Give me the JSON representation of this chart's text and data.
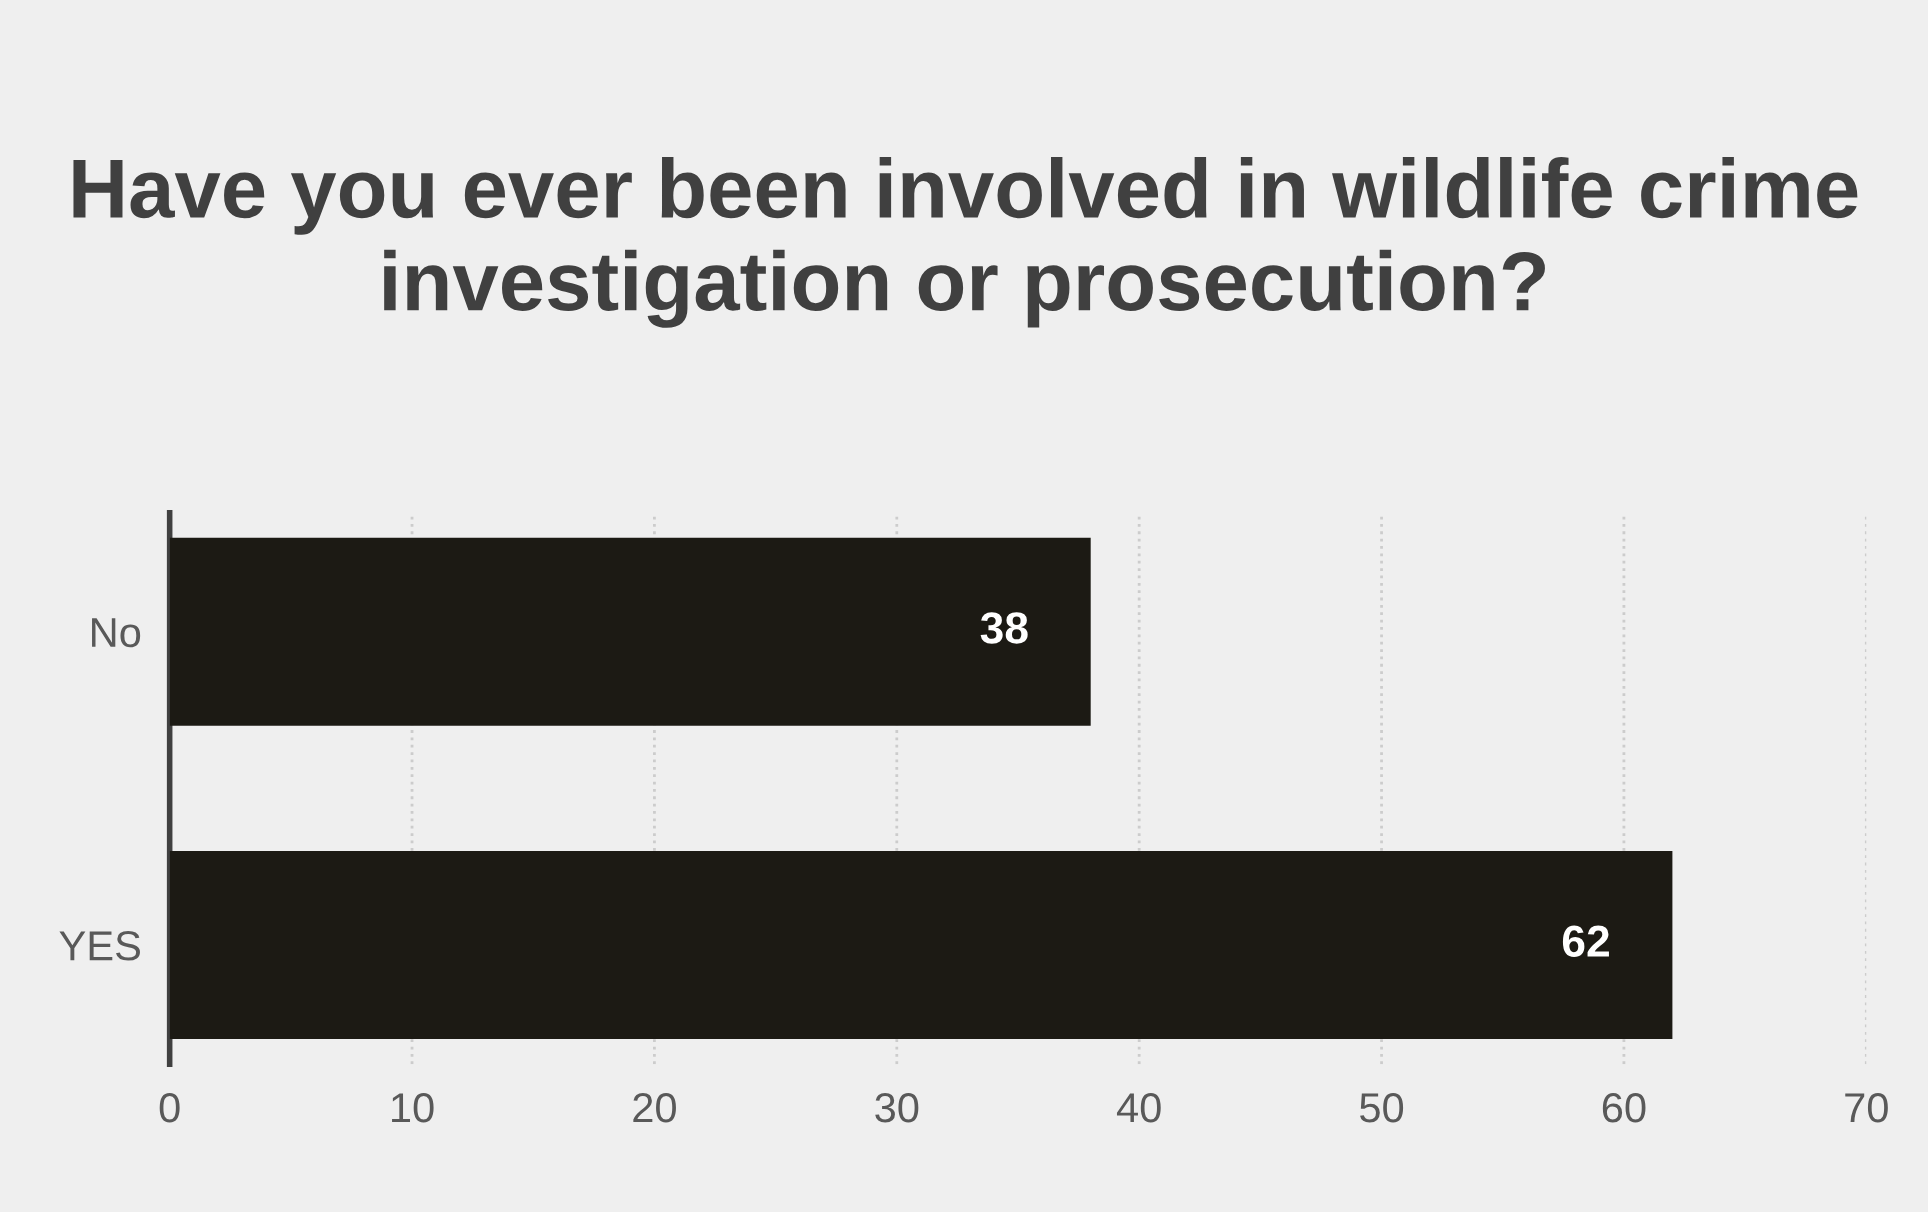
{
  "chart_data": {
    "type": "bar",
    "orientation": "horizontal",
    "title": "Have you ever been involved in wildlife crime investigation or prosecution?",
    "categories": [
      "No",
      "YES"
    ],
    "values": [
      38,
      62
    ],
    "color": "#1c1a14",
    "xlim": [
      0,
      70
    ],
    "xticks": [
      0,
      10,
      20,
      30,
      40,
      50,
      60,
      70
    ],
    "grid": "x",
    "data_labels": true
  }
}
